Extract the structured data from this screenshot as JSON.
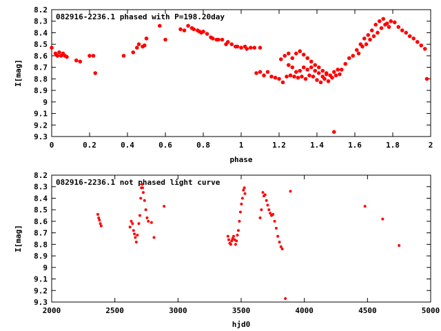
{
  "chart_data": [
    {
      "type": "scatter",
      "title": "082916-2236.1 phased with P=198.20day",
      "xlabel": "phase",
      "ylabel": "I[mag]",
      "xlim": [
        0,
        2
      ],
      "ylim": [
        8.2,
        9.3
      ],
      "y_inverted": true,
      "grid": false,
      "marker_color": "#ff0000",
      "xticks": [
        "0",
        "0.2",
        "0.4",
        "0.6",
        "0.8",
        "1",
        "1.2",
        "1.4",
        "1.6",
        "1.8",
        "2"
      ],
      "yticks": [
        "8.2",
        "8.3",
        "8.4",
        "8.5",
        "8.6",
        "8.7",
        "8.8",
        "8.9",
        "9",
        "9.1",
        "9.2",
        "9.3"
      ],
      "points": [
        [
          0.0,
          8.53
        ],
        [
          0.02,
          8.58
        ],
        [
          0.03,
          8.6
        ],
        [
          0.04,
          8.57
        ],
        [
          0.05,
          8.6
        ],
        [
          0.06,
          8.58
        ],
        [
          0.07,
          8.6
        ],
        [
          0.08,
          8.61
        ],
        [
          0.13,
          8.64
        ],
        [
          0.15,
          8.65
        ],
        [
          0.2,
          8.6
        ],
        [
          0.22,
          8.6
        ],
        [
          0.23,
          8.75
        ],
        [
          0.38,
          8.6
        ],
        [
          0.43,
          8.57
        ],
        [
          0.45,
          8.53
        ],
        [
          0.46,
          8.5
        ],
        [
          0.48,
          8.52
        ],
        [
          0.49,
          8.51
        ],
        [
          0.5,
          8.45
        ],
        [
          0.57,
          8.34
        ],
        [
          0.6,
          8.46
        ],
        [
          0.68,
          8.37
        ],
        [
          0.7,
          8.38
        ],
        [
          0.72,
          8.34
        ],
        [
          0.74,
          8.36
        ],
        [
          0.75,
          8.37
        ],
        [
          0.77,
          8.38
        ],
        [
          0.78,
          8.39
        ],
        [
          0.79,
          8.4
        ],
        [
          0.8,
          8.39
        ],
        [
          0.82,
          8.41
        ],
        [
          0.84,
          8.44
        ],
        [
          0.85,
          8.45
        ],
        [
          0.87,
          8.46
        ],
        [
          0.88,
          8.46
        ],
        [
          0.9,
          8.46
        ],
        [
          0.92,
          8.5
        ],
        [
          0.93,
          8.48
        ],
        [
          0.95,
          8.5
        ],
        [
          0.97,
          8.52
        ],
        [
          0.98,
          8.52
        ],
        [
          1.0,
          8.53
        ],
        [
          1.02,
          8.52
        ],
        [
          1.03,
          8.54
        ],
        [
          1.05,
          8.53
        ],
        [
          1.07,
          8.53
        ],
        [
          1.1,
          8.53
        ],
        [
          1.08,
          8.75
        ],
        [
          1.1,
          8.74
        ],
        [
          1.12,
          8.77
        ],
        [
          1.14,
          8.74
        ],
        [
          1.16,
          8.78
        ],
        [
          1.18,
          8.79
        ],
        [
          1.2,
          8.8
        ],
        [
          1.22,
          8.83
        ],
        [
          1.24,
          8.78
        ],
        [
          1.26,
          8.77
        ],
        [
          1.28,
          8.78
        ],
        [
          1.3,
          8.79
        ],
        [
          1.32,
          8.78
        ],
        [
          1.34,
          8.8
        ],
        [
          1.36,
          8.77
        ],
        [
          1.38,
          8.78
        ],
        [
          1.4,
          8.81
        ],
        [
          1.42,
          8.83
        ],
        [
          1.44,
          8.8
        ],
        [
          1.46,
          8.82
        ],
        [
          1.48,
          8.79
        ],
        [
          1.5,
          8.77
        ],
        [
          1.52,
          8.76
        ],
        [
          1.21,
          8.63
        ],
        [
          1.23,
          8.6
        ],
        [
          1.25,
          8.58
        ],
        [
          1.27,
          8.62
        ],
        [
          1.29,
          8.58
        ],
        [
          1.31,
          8.56
        ],
        [
          1.33,
          8.59
        ],
        [
          1.35,
          8.62
        ],
        [
          1.37,
          8.65
        ],
        [
          1.39,
          8.68
        ],
        [
          1.41,
          8.7
        ],
        [
          1.43,
          8.73
        ],
        [
          1.45,
          8.75
        ],
        [
          1.47,
          8.77
        ],
        [
          1.25,
          8.68
        ],
        [
          1.27,
          8.7
        ],
        [
          1.29,
          8.74
        ],
        [
          1.31,
          8.73
        ],
        [
          1.33,
          8.7
        ],
        [
          1.35,
          8.72
        ],
        [
          1.37,
          8.7
        ],
        [
          1.39,
          8.73
        ],
        [
          1.41,
          8.75
        ],
        [
          1.43,
          8.78
        ],
        [
          1.45,
          8.76
        ],
        [
          1.49,
          8.74
        ],
        [
          1.51,
          8.72
        ],
        [
          1.49,
          9.26
        ],
        [
          1.53,
          8.72
        ],
        [
          1.55,
          8.67
        ],
        [
          1.57,
          8.62
        ],
        [
          1.59,
          8.6
        ],
        [
          1.61,
          8.55
        ],
        [
          1.63,
          8.5
        ],
        [
          1.65,
          8.45
        ],
        [
          1.67,
          8.42
        ],
        [
          1.69,
          8.38
        ],
        [
          1.71,
          8.33
        ],
        [
          1.73,
          8.3
        ],
        [
          1.75,
          8.28
        ],
        [
          1.77,
          8.32
        ],
        [
          1.79,
          8.3
        ],
        [
          1.81,
          8.31
        ],
        [
          1.83,
          8.35
        ],
        [
          1.85,
          8.38
        ],
        [
          1.87,
          8.4
        ],
        [
          1.89,
          8.43
        ],
        [
          1.91,
          8.45
        ],
        [
          1.93,
          8.48
        ],
        [
          1.95,
          8.51
        ],
        [
          1.97,
          8.54
        ],
        [
          1.98,
          8.8
        ],
        [
          1.62,
          8.58
        ],
        [
          1.64,
          8.52
        ],
        [
          1.66,
          8.5
        ],
        [
          1.68,
          8.46
        ],
        [
          1.7,
          8.43
        ],
        [
          1.72,
          8.4
        ],
        [
          1.74,
          8.36
        ],
        [
          1.76,
          8.33
        ],
        [
          1.78,
          8.35
        ]
      ]
    },
    {
      "type": "scatter",
      "title": "082916-2236.1 not phased light curve",
      "xlabel": "hjd0",
      "ylabel": "I[mag]",
      "xlim": [
        2000,
        5000
      ],
      "ylim": [
        8.2,
        9.3
      ],
      "y_inverted": true,
      "grid": false,
      "marker_color": "#ff0000",
      "xticks": [
        "2000",
        "2500",
        "3000",
        "3500",
        "4000",
        "4500",
        "5000"
      ],
      "yticks": [
        "8.2",
        "8.3",
        "8.4",
        "8.5",
        "8.6",
        "8.7",
        "8.8",
        "8.9",
        "9",
        "9.1",
        "9.2",
        "9.3"
      ],
      "points": [
        [
          2365,
          8.54
        ],
        [
          2372,
          8.57
        ],
        [
          2378,
          8.59
        ],
        [
          2385,
          8.62
        ],
        [
          2392,
          8.64
        ],
        [
          2620,
          8.65
        ],
        [
          2630,
          8.6
        ],
        [
          2640,
          8.62
        ],
        [
          2648,
          8.68
        ],
        [
          2655,
          8.71
        ],
        [
          2662,
          8.74
        ],
        [
          2670,
          8.78
        ],
        [
          2678,
          8.72
        ],
        [
          2690,
          8.62
        ],
        [
          2698,
          8.55
        ],
        [
          2705,
          8.4
        ],
        [
          2710,
          8.31
        ],
        [
          2715,
          8.28
        ],
        [
          2720,
          8.31
        ],
        [
          2725,
          8.35
        ],
        [
          2735,
          8.42
        ],
        [
          2745,
          8.5
        ],
        [
          2755,
          8.57
        ],
        [
          2765,
          8.6
        ],
        [
          2790,
          8.61
        ],
        [
          2810,
          8.74
        ],
        [
          2890,
          8.47
        ],
        [
          3395,
          8.73
        ],
        [
          3402,
          8.76
        ],
        [
          3410,
          8.79
        ],
        [
          3418,
          8.8
        ],
        [
          3425,
          8.77
        ],
        [
          3432,
          8.75
        ],
        [
          3440,
          8.73
        ],
        [
          3448,
          8.76
        ],
        [
          3456,
          8.8
        ],
        [
          3463,
          8.77
        ],
        [
          3470,
          8.72
        ],
        [
          3478,
          8.68
        ],
        [
          3486,
          8.6
        ],
        [
          3494,
          8.52
        ],
        [
          3502,
          8.45
        ],
        [
          3510,
          8.4
        ],
        [
          3518,
          8.33
        ],
        [
          3525,
          8.31
        ],
        [
          3530,
          8.36
        ],
        [
          3650,
          8.57
        ],
        [
          3660,
          8.5
        ],
        [
          3672,
          8.35
        ],
        [
          3680,
          8.38
        ],
        [
          3690,
          8.37
        ],
        [
          3700,
          8.42
        ],
        [
          3710,
          8.46
        ],
        [
          3720,
          8.5
        ],
        [
          3730,
          8.53
        ],
        [
          3740,
          8.55
        ],
        [
          3752,
          8.54
        ],
        [
          3765,
          8.6
        ],
        [
          3778,
          8.66
        ],
        [
          3790,
          8.73
        ],
        [
          3803,
          8.78
        ],
        [
          3815,
          8.82
        ],
        [
          3825,
          8.84
        ],
        [
          3850,
          9.27
        ],
        [
          3890,
          8.34
        ],
        [
          4480,
          8.47
        ],
        [
          4620,
          8.58
        ],
        [
          4750,
          8.81
        ]
      ]
    }
  ]
}
